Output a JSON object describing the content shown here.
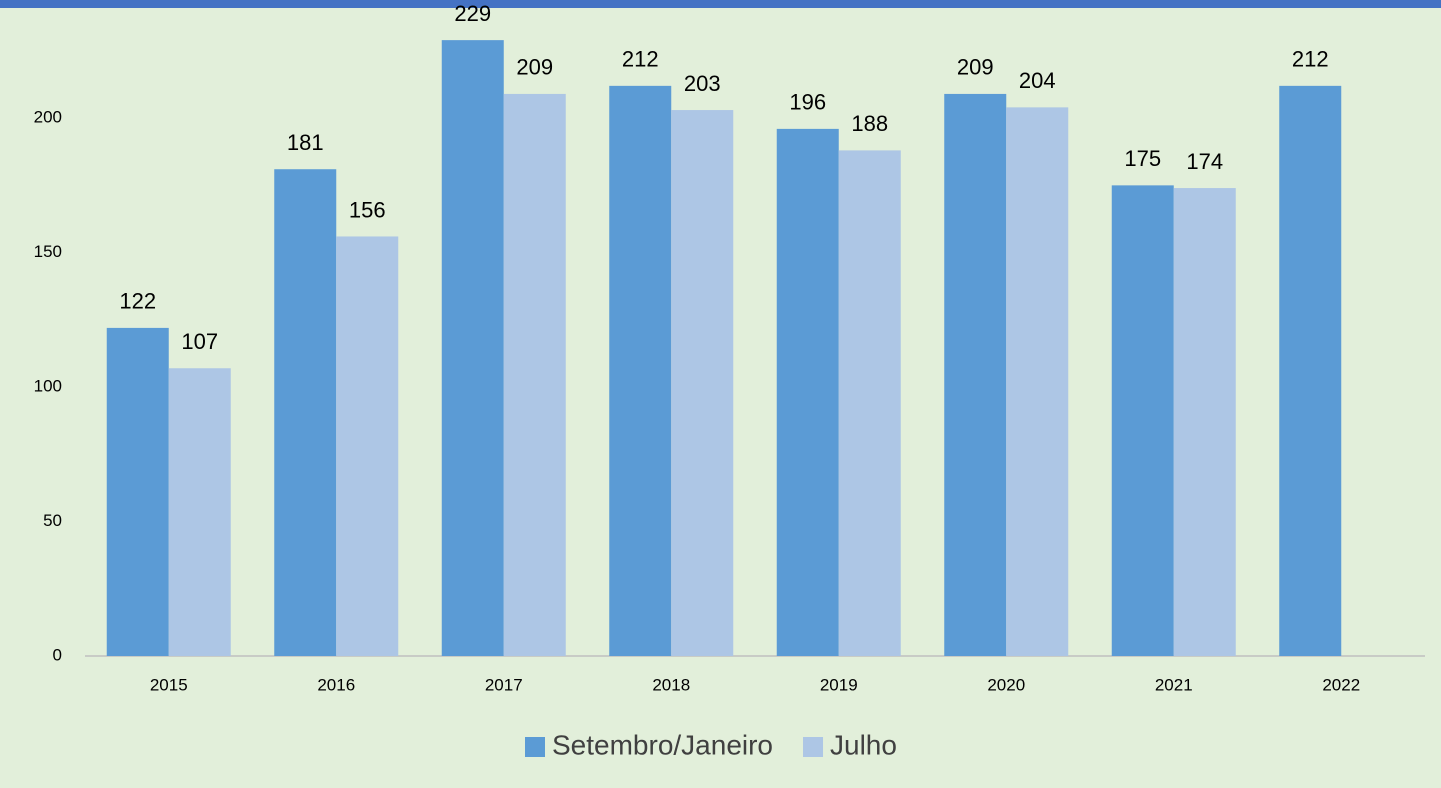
{
  "chart_data": {
    "type": "bar",
    "categories": [
      "2015",
      "2016",
      "2017",
      "2018",
      "2019",
      "2020",
      "2021",
      "2022"
    ],
    "series": [
      {
        "name": "Setembro/Janeiro",
        "color": "#5b9bd5",
        "values": [
          122,
          181,
          229,
          212,
          196,
          209,
          175,
          212
        ]
      },
      {
        "name": "Julho",
        "color": "#adc6e5",
        "values": [
          107,
          156,
          209,
          203,
          188,
          204,
          174,
          null
        ]
      }
    ],
    "ylim": [
      0,
      235
    ],
    "yticks": [
      0,
      50,
      100,
      150,
      200
    ],
    "grid": false,
    "legend": "bottom"
  }
}
